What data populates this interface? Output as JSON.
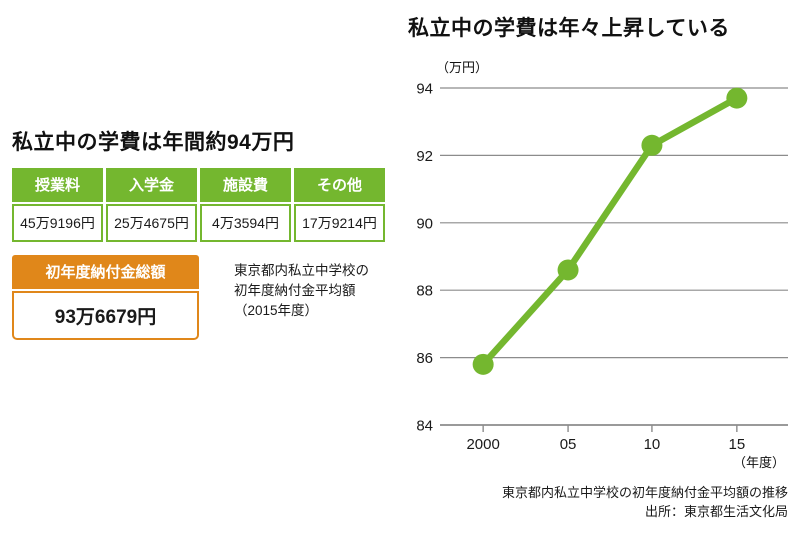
{
  "left": {
    "title": "私立中の学費は年間約94万円",
    "fee_table": {
      "headers": [
        "授業料",
        "入学金",
        "施設費",
        "その他"
      ],
      "values": [
        "45万9196円",
        "25万4675円",
        "4万3594円",
        "17万9214円"
      ]
    },
    "total_box": {
      "label": "初年度納付金総額",
      "value": "93万6679円"
    },
    "note_lines": [
      "東京都内私立中学校の",
      "初年度納付金平均額",
      "（2015年度）"
    ]
  },
  "chart": {
    "title": "私立中の学費は年々上昇している",
    "unit_label": "（万円）",
    "x_unit_label": "（年度）",
    "caption_line1": "東京都内私立中学校の初年度納付金平均額の推移",
    "caption_line2": "出所：東京都生活文化局"
  },
  "chart_data": {
    "type": "line",
    "categories": [
      "2000",
      "05",
      "10",
      "15"
    ],
    "values": [
      85.8,
      88.6,
      92.3,
      93.7
    ],
    "title": "私立中の学費は年々上昇している",
    "xlabel": "年度",
    "ylabel": "万円",
    "ylim": [
      84,
      94
    ],
    "yticks": [
      84,
      86,
      88,
      90,
      92,
      94
    ],
    "grid": true,
    "legend": false,
    "line_color": "#74b72f",
    "marker": "circle"
  },
  "colors": {
    "green": "#74b72f",
    "orange": "#e0871a"
  }
}
